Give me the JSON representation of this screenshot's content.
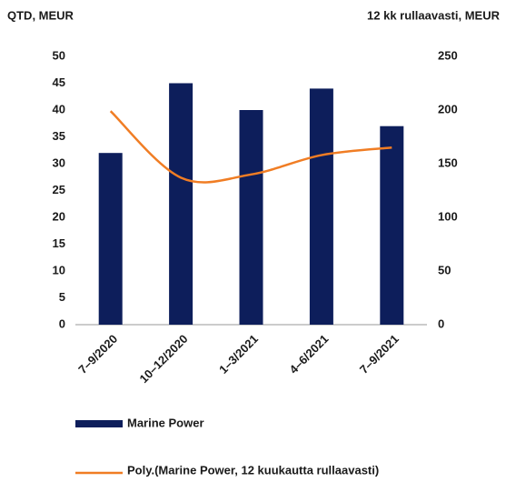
{
  "chart_data": {
    "type": "bar",
    "y_title": "QTD, MEUR",
    "y2_title": "12 kk rullaavasti, MEUR",
    "categories": [
      "7–9/2020",
      "10–12/2020",
      "1–3/2021",
      "4–6/2021",
      "7–9/2021"
    ],
    "series": [
      {
        "name": "Marine Power",
        "color": "#0d1e5b",
        "type": "bar",
        "values": [
          32,
          45,
          40,
          44,
          37
        ]
      },
      {
        "name": "Poly.(Marine Power, 12 kuukautta rullaavasti)",
        "color": "#f07d24",
        "type": "line",
        "axis": "y2",
        "values": [
          199,
          137,
          140,
          158,
          165
        ]
      }
    ],
    "ylim": [
      0,
      50
    ],
    "yticks": [
      0,
      5,
      10,
      15,
      20,
      25,
      30,
      35,
      40,
      45,
      50
    ],
    "y2lim": [
      0,
      250
    ],
    "y2ticks": [
      0,
      50,
      100,
      150,
      200,
      250
    ]
  }
}
